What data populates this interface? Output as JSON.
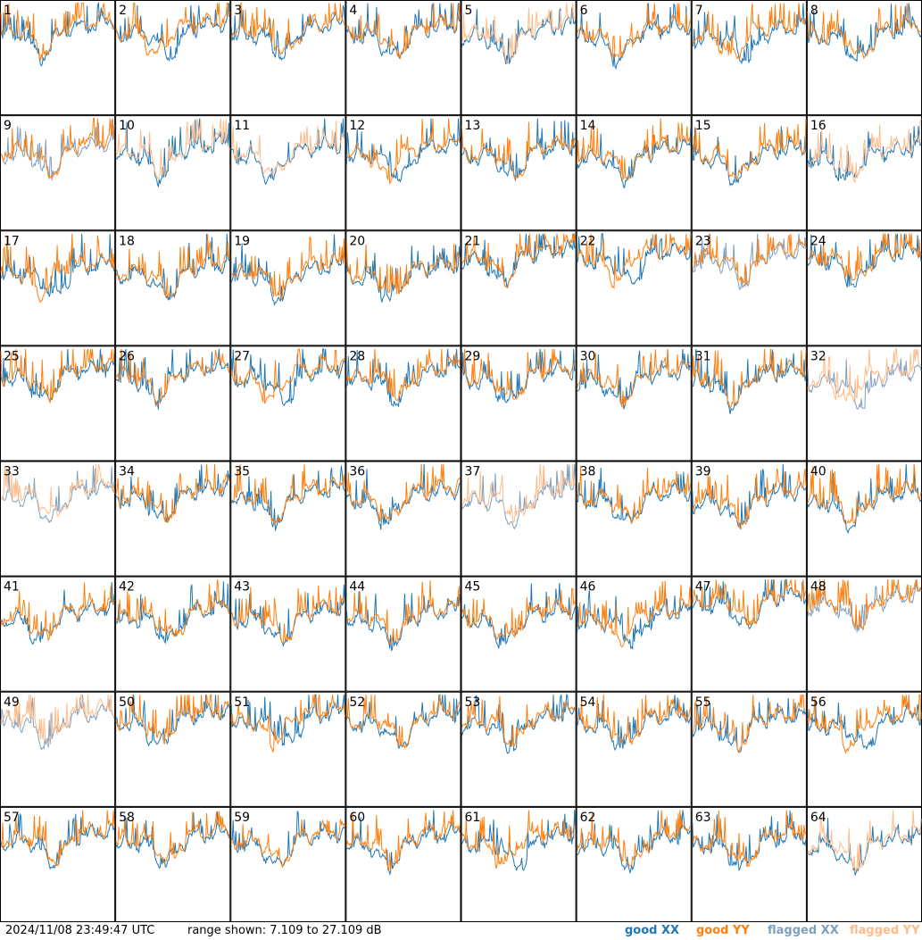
{
  "footer": {
    "timestamp": "2024/11/08 23:49:47 UTC",
    "range_text": "range shown: 7.109 to 27.109 dB"
  },
  "legend": [
    {
      "label": "good XX",
      "color": "#1f77b4"
    },
    {
      "label": "good YY",
      "color": "#ff7f0e"
    },
    {
      "label": "flagged XX",
      "color": "#7f9fbf"
    },
    {
      "label": "flagged YY",
      "color": "#ffbb88"
    }
  ],
  "chart_data": {
    "type": "line",
    "title": "",
    "ylim": [
      7.109,
      27.109
    ],
    "grid": "8x8 small multiples",
    "panels": [
      {
        "id": "1",
        "xx": "good",
        "yy": "good"
      },
      {
        "id": "2",
        "xx": "good",
        "yy": "good"
      },
      {
        "id": "3",
        "xx": "good",
        "yy": "good"
      },
      {
        "id": "4",
        "xx": "good",
        "yy": "good"
      },
      {
        "id": "5",
        "xx": "good",
        "yy": "flagged"
      },
      {
        "id": "6",
        "xx": "good",
        "yy": "good"
      },
      {
        "id": "7",
        "xx": "good",
        "yy": "good"
      },
      {
        "id": "8",
        "xx": "good",
        "yy": "good"
      },
      {
        "id": "9",
        "xx": "flagged",
        "yy": "good"
      },
      {
        "id": "10",
        "xx": "good",
        "yy": "flagged"
      },
      {
        "id": "11",
        "xx": "good",
        "yy": "flagged"
      },
      {
        "id": "12",
        "xx": "good",
        "yy": "good"
      },
      {
        "id": "13",
        "xx": "good",
        "yy": "good"
      },
      {
        "id": "14",
        "xx": "good",
        "yy": "good"
      },
      {
        "id": "15",
        "xx": "good",
        "yy": "good"
      },
      {
        "id": "16",
        "xx": "good",
        "yy": "flagged"
      },
      {
        "id": "17",
        "xx": "good",
        "yy": "good"
      },
      {
        "id": "18",
        "xx": "good",
        "yy": "good"
      },
      {
        "id": "19",
        "xx": "good",
        "yy": "good"
      },
      {
        "id": "20",
        "xx": "good",
        "yy": "good"
      },
      {
        "id": "21",
        "xx": "good",
        "yy": "good"
      },
      {
        "id": "22",
        "xx": "good",
        "yy": "good"
      },
      {
        "id": "23",
        "xx": "flagged",
        "yy": "good"
      },
      {
        "id": "24",
        "xx": "good",
        "yy": "good"
      },
      {
        "id": "25",
        "xx": "good",
        "yy": "good"
      },
      {
        "id": "26",
        "xx": "good",
        "yy": "good"
      },
      {
        "id": "27",
        "xx": "good",
        "yy": "good"
      },
      {
        "id": "28",
        "xx": "good",
        "yy": "good"
      },
      {
        "id": "29",
        "xx": "good",
        "yy": "good"
      },
      {
        "id": "30",
        "xx": "good",
        "yy": "good"
      },
      {
        "id": "31",
        "xx": "good",
        "yy": "good"
      },
      {
        "id": "32",
        "xx": "flagged",
        "yy": "flagged"
      },
      {
        "id": "33",
        "xx": "flagged",
        "yy": "flagged"
      },
      {
        "id": "34",
        "xx": "good",
        "yy": "good"
      },
      {
        "id": "35",
        "xx": "good",
        "yy": "good"
      },
      {
        "id": "36",
        "xx": "good",
        "yy": "good"
      },
      {
        "id": "37",
        "xx": "flagged",
        "yy": "flagged"
      },
      {
        "id": "38",
        "xx": "good",
        "yy": "good"
      },
      {
        "id": "39",
        "xx": "good",
        "yy": "good"
      },
      {
        "id": "40",
        "xx": "good",
        "yy": "good"
      },
      {
        "id": "41",
        "xx": "good",
        "yy": "good"
      },
      {
        "id": "42",
        "xx": "good",
        "yy": "good"
      },
      {
        "id": "43",
        "xx": "good",
        "yy": "good"
      },
      {
        "id": "44",
        "xx": "good",
        "yy": "good"
      },
      {
        "id": "45",
        "xx": "good",
        "yy": "good"
      },
      {
        "id": "46",
        "xx": "good",
        "yy": "good"
      },
      {
        "id": "47",
        "xx": "good",
        "yy": "good"
      },
      {
        "id": "48",
        "xx": "flagged",
        "yy": "good"
      },
      {
        "id": "49",
        "xx": "flagged",
        "yy": "flagged"
      },
      {
        "id": "50",
        "xx": "good",
        "yy": "good"
      },
      {
        "id": "51",
        "xx": "good",
        "yy": "good"
      },
      {
        "id": "52",
        "xx": "good",
        "yy": "good"
      },
      {
        "id": "53",
        "xx": "good",
        "yy": "good"
      },
      {
        "id": "54",
        "xx": "good",
        "yy": "good"
      },
      {
        "id": "55",
        "xx": "good",
        "yy": "good"
      },
      {
        "id": "56",
        "xx": "good",
        "yy": "good"
      },
      {
        "id": "57",
        "xx": "good",
        "yy": "good"
      },
      {
        "id": "58",
        "xx": "good",
        "yy": "good"
      },
      {
        "id": "59",
        "xx": "good",
        "yy": "good"
      },
      {
        "id": "60",
        "xx": "good",
        "yy": "good"
      },
      {
        "id": "61",
        "xx": "good",
        "yy": "good"
      },
      {
        "id": "62",
        "xx": "good",
        "yy": "good"
      },
      {
        "id": "63",
        "xx": "good",
        "yy": "good"
      },
      {
        "id": "64",
        "xx": "good",
        "yy": "flagged"
      }
    ]
  }
}
